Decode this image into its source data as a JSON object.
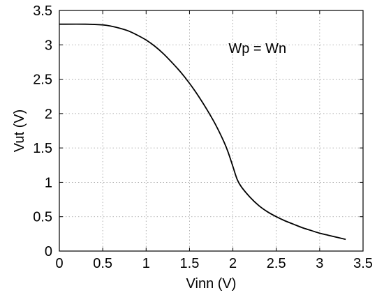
{
  "chart_data": {
    "type": "line",
    "title": "",
    "xlabel": "Vinn (V)",
    "ylabel": "Vut (V)",
    "xlim": [
      0,
      3.5
    ],
    "ylim": [
      0,
      3.5
    ],
    "xticks": [
      0,
      0.5,
      1,
      1.5,
      2,
      2.5,
      3,
      3.5
    ],
    "yticks": [
      0,
      0.5,
      1,
      1.5,
      2,
      2.5,
      3,
      3.5
    ],
    "xtick_labels": [
      "0",
      "0.5",
      "1",
      "1.5",
      "2",
      "2.5",
      "3",
      "3.5"
    ],
    "ytick_labels": [
      "0",
      "0.5",
      "1",
      "1.5",
      "2",
      "2.5",
      "3",
      "3.5"
    ],
    "grid": true,
    "annotations": [
      {
        "text": "Wp = Wn",
        "x": 1.95,
        "y": 2.95
      }
    ],
    "series": [
      {
        "color": "#000000",
        "x": [
          0,
          0.3,
          0.5,
          0.6,
          0.7,
          0.8,
          0.9,
          1.0,
          1.1,
          1.2,
          1.3,
          1.4,
          1.5,
          1.6,
          1.7,
          1.8,
          1.9,
          1.95,
          2.0,
          2.05,
          2.1,
          2.2,
          2.3,
          2.4,
          2.5,
          2.6,
          2.7,
          2.8,
          2.9,
          3.0,
          3.1,
          3.2,
          3.3
        ],
        "y": [
          3.3,
          3.3,
          3.29,
          3.27,
          3.24,
          3.2,
          3.14,
          3.07,
          2.98,
          2.87,
          2.74,
          2.6,
          2.44,
          2.26,
          2.06,
          1.84,
          1.58,
          1.42,
          1.23,
          1.04,
          0.93,
          0.78,
          0.66,
          0.57,
          0.5,
          0.44,
          0.39,
          0.34,
          0.3,
          0.26,
          0.23,
          0.2,
          0.17
        ]
      }
    ]
  }
}
